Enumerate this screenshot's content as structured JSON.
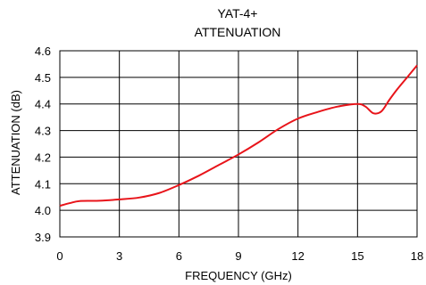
{
  "chart_data": {
    "type": "line",
    "title_lines": [
      "YAT-4+",
      "ATTENUATION"
    ],
    "xlabel": "FREQUENCY (GHz)",
    "ylabel": "ATTENUATION (dB)",
    "xlim": [
      0,
      18
    ],
    "ylim": [
      3.9,
      4.6
    ],
    "x_ticks": [
      0,
      3,
      6,
      9,
      12,
      15,
      18
    ],
    "y_ticks": [
      3.9,
      4.0,
      4.1,
      4.2,
      4.3,
      4.4,
      4.5,
      4.6
    ],
    "x_tick_labels": [
      "0",
      "3",
      "6",
      "9",
      "12",
      "15",
      "18"
    ],
    "y_tick_labels": [
      "3.9",
      "4.0",
      "4.1",
      "4.2",
      "4.3",
      "4.4",
      "4.5",
      "4.6"
    ],
    "grid": true,
    "series": [
      {
        "color": "#e8141a",
        "x": [
          0,
          0.5,
          1,
          2,
          3,
          4,
          5,
          6,
          7,
          8,
          9,
          10,
          11,
          12,
          13,
          14,
          15,
          15.4,
          15.8,
          16.2,
          16.6,
          17,
          17.5,
          18
        ],
        "y": [
          4.017,
          4.027,
          4.035,
          4.036,
          4.041,
          4.048,
          4.065,
          4.095,
          4.13,
          4.17,
          4.21,
          4.255,
          4.305,
          4.345,
          4.37,
          4.39,
          4.4,
          4.39,
          4.365,
          4.372,
          4.415,
          4.455,
          4.5,
          4.545
        ]
      }
    ]
  }
}
